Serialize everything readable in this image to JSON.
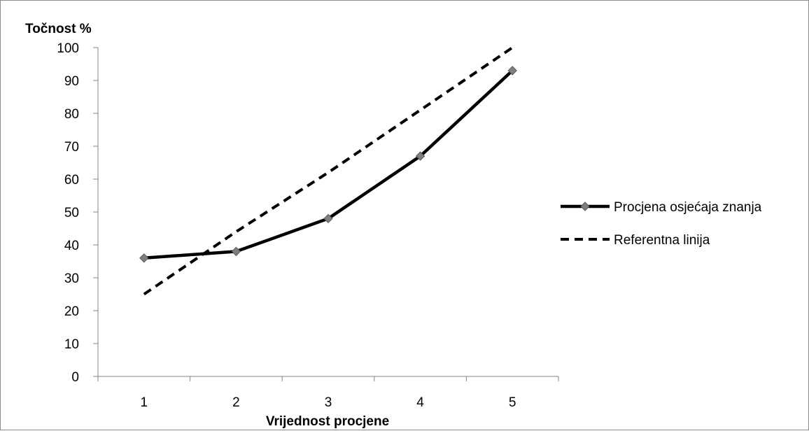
{
  "chart_data": {
    "type": "line",
    "title": "",
    "ylabel": "Točnost %",
    "xlabel": "Vrijednost procjene",
    "categories": [
      "1",
      "2",
      "3",
      "4",
      "5"
    ],
    "ylim": [
      0,
      100
    ],
    "yticks": [
      "0",
      "10",
      "20",
      "30",
      "40",
      "50",
      "60",
      "70",
      "80",
      "90",
      "100"
    ],
    "grid": false,
    "legend_position": "right",
    "series": [
      {
        "name": "Procjena osjećaja znanja",
        "values": [
          36,
          38,
          48,
          67,
          93
        ],
        "line_style": "solid",
        "line_color": "#000000",
        "marker": "diamond",
        "marker_color": "#7f7f7f"
      },
      {
        "name": "Referentna linija",
        "values": [
          25,
          44,
          62,
          81,
          100
        ],
        "line_style": "dashed",
        "line_color": "#000000",
        "marker": "none"
      }
    ]
  }
}
